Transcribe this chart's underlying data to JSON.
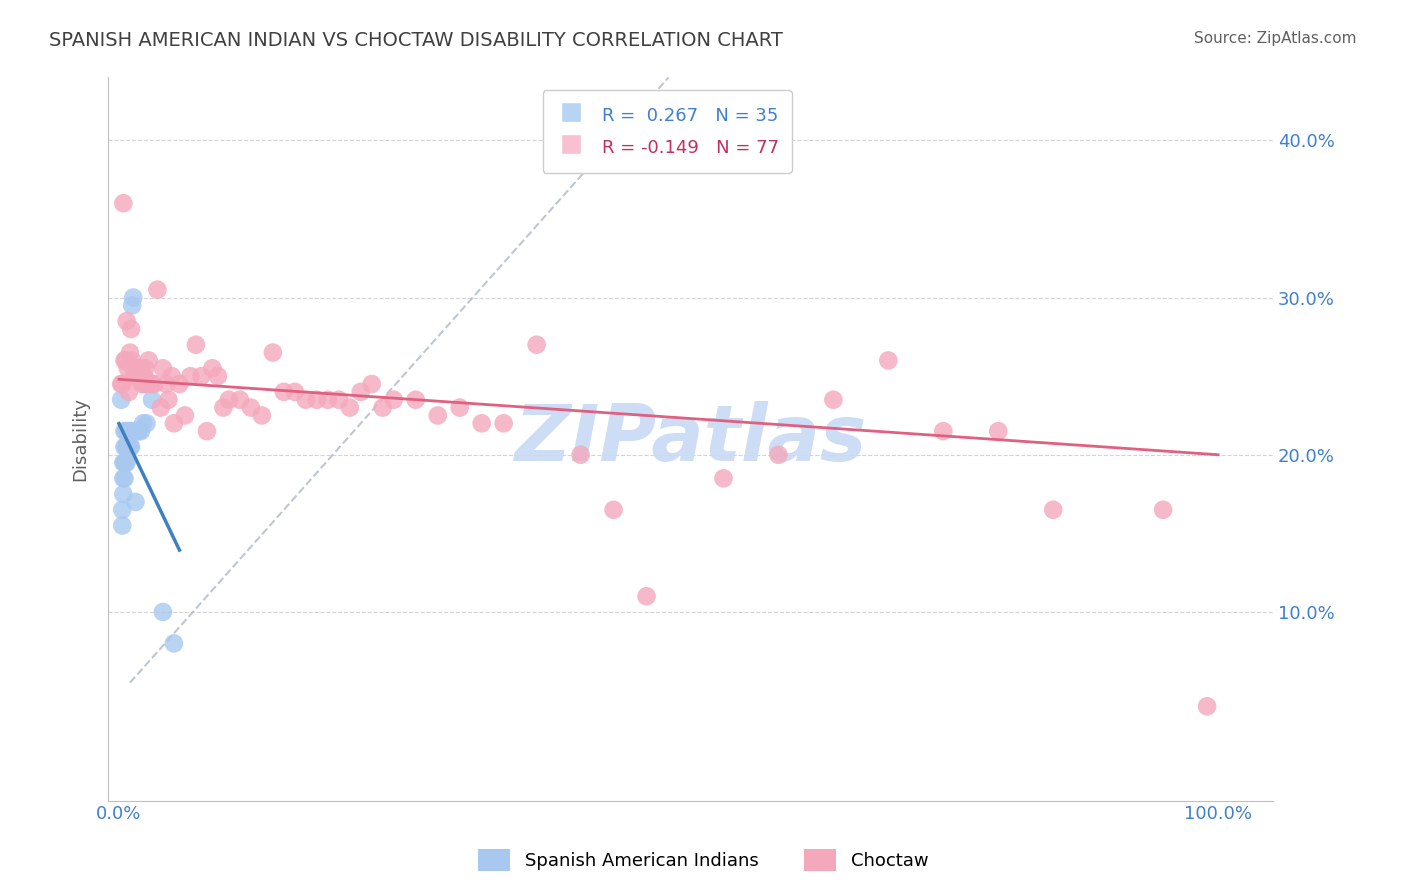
{
  "title": "SPANISH AMERICAN INDIAN VS CHOCTAW DISABILITY CORRELATION CHART",
  "source": "Source: ZipAtlas.com",
  "ylabel": "Disability",
  "blue_R": 0.267,
  "blue_N": 35,
  "pink_R": -0.149,
  "pink_N": 77,
  "blue_color": "#a8c8f0",
  "pink_color": "#f4a8bc",
  "blue_line_color": "#4080c0",
  "pink_line_color": "#e06080",
  "blue_legend_color": "#b8d4f4",
  "pink_legend_color": "#f8c0d0",
  "blue_R_color": "#4080d0",
  "pink_R_color": "#c03060",
  "watermark": "ZIPatlas",
  "watermark_color": "#c8daf4",
  "bg_color": "#ffffff",
  "grid_color": "#d0d0d0",
  "title_color": "#404040",
  "blue_scatter_x": [
    0.002,
    0.003,
    0.003,
    0.004,
    0.004,
    0.004,
    0.005,
    0.005,
    0.005,
    0.005,
    0.006,
    0.006,
    0.006,
    0.007,
    0.007,
    0.007,
    0.008,
    0.008,
    0.009,
    0.009,
    0.01,
    0.01,
    0.011,
    0.011,
    0.012,
    0.013,
    0.015,
    0.016,
    0.018,
    0.02,
    0.022,
    0.025,
    0.03,
    0.04,
    0.05
  ],
  "blue_scatter_y": [
    0.235,
    0.165,
    0.155,
    0.195,
    0.185,
    0.175,
    0.215,
    0.205,
    0.195,
    0.185,
    0.215,
    0.205,
    0.195,
    0.215,
    0.205,
    0.195,
    0.215,
    0.205,
    0.215,
    0.205,
    0.215,
    0.205,
    0.215,
    0.205,
    0.295,
    0.3,
    0.17,
    0.215,
    0.215,
    0.215,
    0.22,
    0.22,
    0.235,
    0.1,
    0.08
  ],
  "pink_scatter_x": [
    0.002,
    0.003,
    0.004,
    0.005,
    0.006,
    0.007,
    0.008,
    0.009,
    0.01,
    0.011,
    0.012,
    0.013,
    0.014,
    0.015,
    0.016,
    0.017,
    0.018,
    0.019,
    0.02,
    0.021,
    0.022,
    0.023,
    0.024,
    0.025,
    0.027,
    0.03,
    0.032,
    0.035,
    0.038,
    0.04,
    0.043,
    0.045,
    0.048,
    0.05,
    0.055,
    0.06,
    0.065,
    0.07,
    0.075,
    0.08,
    0.085,
    0.09,
    0.095,
    0.1,
    0.11,
    0.12,
    0.13,
    0.14,
    0.15,
    0.16,
    0.17,
    0.18,
    0.19,
    0.2,
    0.21,
    0.22,
    0.23,
    0.24,
    0.25,
    0.27,
    0.29,
    0.31,
    0.33,
    0.35,
    0.38,
    0.42,
    0.45,
    0.48,
    0.55,
    0.6,
    0.65,
    0.7,
    0.75,
    0.8,
    0.85,
    0.95,
    0.99
  ],
  "pink_scatter_y": [
    0.245,
    0.245,
    0.36,
    0.26,
    0.26,
    0.285,
    0.255,
    0.24,
    0.265,
    0.28,
    0.26,
    0.255,
    0.25,
    0.255,
    0.25,
    0.255,
    0.255,
    0.25,
    0.255,
    0.245,
    0.245,
    0.25,
    0.255,
    0.245,
    0.26,
    0.245,
    0.245,
    0.305,
    0.23,
    0.255,
    0.245,
    0.235,
    0.25,
    0.22,
    0.245,
    0.225,
    0.25,
    0.27,
    0.25,
    0.215,
    0.255,
    0.25,
    0.23,
    0.235,
    0.235,
    0.23,
    0.225,
    0.265,
    0.24,
    0.24,
    0.235,
    0.235,
    0.235,
    0.235,
    0.23,
    0.24,
    0.245,
    0.23,
    0.235,
    0.235,
    0.225,
    0.23,
    0.22,
    0.22,
    0.27,
    0.2,
    0.165,
    0.11,
    0.185,
    0.2,
    0.235,
    0.26,
    0.215,
    0.215,
    0.165,
    0.165,
    0.04
  ]
}
